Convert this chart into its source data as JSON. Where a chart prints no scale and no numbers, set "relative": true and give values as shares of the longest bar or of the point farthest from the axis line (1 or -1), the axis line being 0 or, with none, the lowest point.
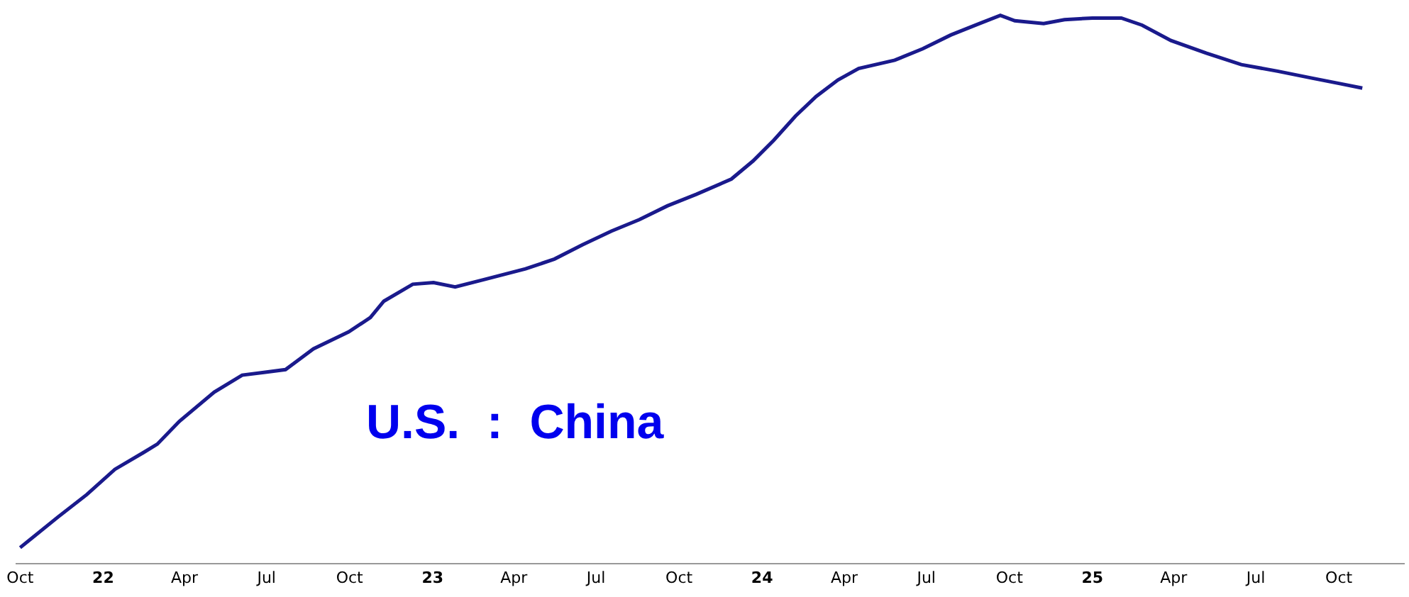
{
  "chart_data": {
    "type": "line",
    "relative": true,
    "marker": "none",
    "line_style": "solid",
    "annotations": [
      "U.S.  :  China"
    ],
    "xlim": [
      "2021-09-26",
      "2025-12-13"
    ],
    "xticks": [
      {
        "value": "2021-10-01",
        "label": "Oct"
      },
      {
        "value": "2022-01-01",
        "label": "22"
      },
      {
        "value": "2022-04-01",
        "label": "Apr"
      },
      {
        "value": "2022-07-01",
        "label": "Jul"
      },
      {
        "value": "2022-10-01",
        "label": "Oct"
      },
      {
        "value": "2023-01-01",
        "label": "23"
      },
      {
        "value": "2023-04-01",
        "label": "Apr"
      },
      {
        "value": "2023-07-01",
        "label": "Jul"
      },
      {
        "value": "2023-10-01",
        "label": "Oct"
      },
      {
        "value": "2024-01-01",
        "label": "24"
      },
      {
        "value": "2024-04-01",
        "label": "Apr"
      },
      {
        "value": "2024-07-01",
        "label": "Jul"
      },
      {
        "value": "2024-10-01",
        "label": "Oct"
      },
      {
        "value": "2025-01-01",
        "label": "25"
      },
      {
        "value": "2025-04-01",
        "label": "Apr"
      },
      {
        "value": "2025-07-01",
        "label": "Jul"
      },
      {
        "value": "2025-10-01",
        "label": "Oct"
      }
    ],
    "series": [
      {
        "color": "#1a1a8c",
        "x": [
          "2021-10-01",
          "2021-11-12",
          "2021-12-14",
          "2022-01-14",
          "2022-02-15",
          "2022-03-02",
          "2022-03-26",
          "2022-05-04",
          "2022-06-04",
          "2022-06-28",
          "2022-07-22",
          "2022-08-22",
          "2022-09-30",
          "2022-10-24",
          "2022-11-08",
          "2022-12-10",
          "2023-01-02",
          "2023-01-26",
          "2023-02-26",
          "2023-04-14",
          "2023-05-16",
          "2023-06-16",
          "2023-07-18",
          "2023-08-18",
          "2023-09-18",
          "2023-10-20",
          "2023-11-28",
          "2023-12-22",
          "2024-01-14",
          "2024-02-07",
          "2024-03-01",
          "2024-03-25",
          "2024-04-17",
          "2024-05-27",
          "2024-06-27",
          "2024-07-28",
          "2024-08-29",
          "2024-09-21",
          "2024-10-07",
          "2024-11-08",
          "2024-12-01",
          "2025-01-01",
          "2025-02-02",
          "2025-02-25",
          "2025-03-29",
          "2025-05-07",
          "2025-06-15",
          "2025-07-25",
          "2025-09-02",
          "2025-10-03",
          "2025-10-27"
        ],
        "values": [
          0.028,
          0.084,
          0.125,
          0.171,
          0.202,
          0.217,
          0.258,
          0.312,
          0.343,
          0.348,
          0.353,
          0.391,
          0.422,
          0.448,
          0.478,
          0.509,
          0.512,
          0.504,
          0.517,
          0.537,
          0.555,
          0.581,
          0.606,
          0.627,
          0.652,
          0.673,
          0.701,
          0.734,
          0.772,
          0.816,
          0.852,
          0.882,
          0.903,
          0.918,
          0.939,
          0.964,
          0.985,
          1.0,
          0.99,
          0.985,
          0.992,
          0.995,
          0.995,
          0.982,
          0.954,
          0.931,
          0.91,
          0.898,
          0.885,
          0.875,
          0.867
        ]
      }
    ]
  }
}
